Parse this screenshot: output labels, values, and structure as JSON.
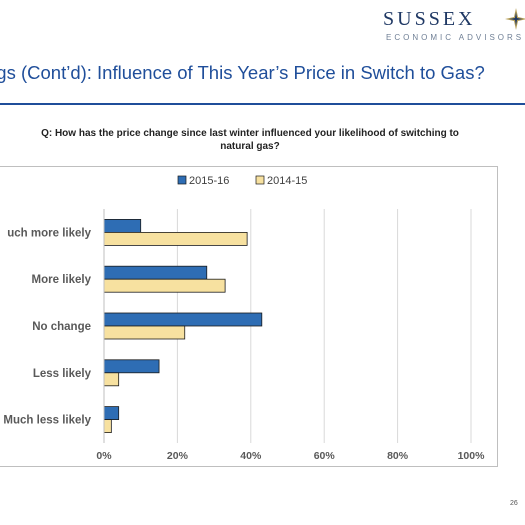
{
  "header": {
    "logo_word": "SUSSEX",
    "logo_subtitle": "ECONOMIC ADVISORS",
    "page_title": "ngs (Cont’d): Influence of This Year’s Price in Switch to Gas?"
  },
  "question": {
    "line1": "Q: How has the price change since last winter influenced your likelihood of switching to",
    "line2": "natural gas?"
  },
  "colors": {
    "series_2015": "#2e6db4",
    "series_2014": "#f7e1a0",
    "title_blue": "#1f4e9a"
  },
  "chart_data": {
    "type": "bar",
    "orientation": "horizontal",
    "categories": [
      "uch more likely",
      "More likely",
      "No change",
      "Less likely",
      "Much less likely"
    ],
    "series": [
      {
        "name": "2015-16",
        "values": [
          10,
          28,
          43,
          15,
          4
        ]
      },
      {
        "name": "2014-15",
        "values": [
          39,
          33,
          22,
          4,
          2
        ]
      }
    ],
    "x_ticks": [
      "0%",
      "20%",
      "40%",
      "60%",
      "80%",
      "100%"
    ],
    "xlim": [
      0,
      100
    ],
    "grid": true,
    "legend_position": "top"
  },
  "footer": {
    "page_number": "26"
  }
}
